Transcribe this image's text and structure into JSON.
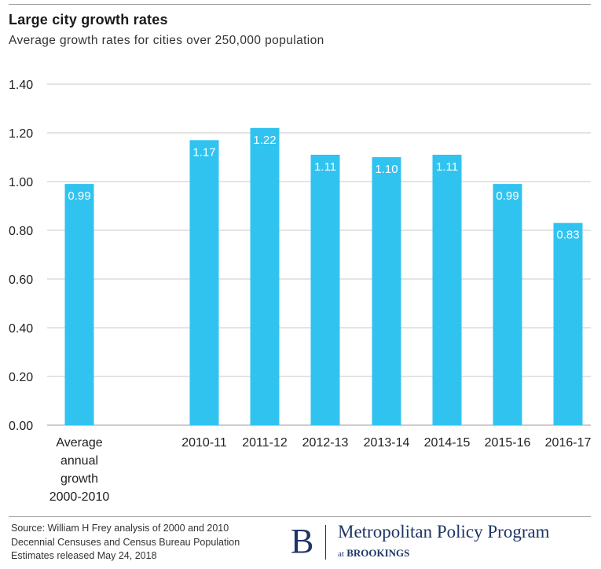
{
  "chart_data": {
    "type": "bar",
    "title": "Large city growth rates",
    "subtitle": "Average growth rates for cities over 250,000 population",
    "categories": [
      "Average annual growth 2000-2010",
      "2010-11",
      "2011-12",
      "2012-13",
      "2013-14",
      "2014-15",
      "2015-16",
      "2016-17"
    ],
    "category_lines": [
      [
        "Average",
        "annual",
        "growth",
        "2000-2010"
      ],
      [
        "2010-11"
      ],
      [
        "2011-12"
      ],
      [
        "2012-13"
      ],
      [
        "2013-14"
      ],
      [
        "2014-15"
      ],
      [
        "2015-16"
      ],
      [
        "2016-17"
      ]
    ],
    "values": [
      0.99,
      1.17,
      1.22,
      1.11,
      1.1,
      1.11,
      0.99,
      0.83
    ],
    "value_labels": [
      "0.99",
      "1.17",
      "1.22",
      "1.11",
      "1.10",
      "1.11",
      "0.99",
      "0.83"
    ],
    "ylim": [
      0,
      1.4
    ],
    "yticks": [
      0,
      0.2,
      0.4,
      0.6,
      0.8,
      1.0,
      1.2,
      1.4
    ],
    "ytick_labels": [
      "0.00",
      "0.20",
      "0.40",
      "0.60",
      "0.80",
      "1.00",
      "1.20",
      "1.40"
    ],
    "xlabel": "",
    "ylabel": "",
    "grid": true,
    "bar_color": "#31c3f0",
    "grid_color": "#c8c8c8"
  },
  "source": {
    "lines": [
      "Source: William H Frey analysis of 2000 and 2010",
      "Decennial Censuses and Census Bureau Population",
      "Estimates released May 24, 2018"
    ]
  },
  "logo": {
    "mark": "B",
    "name": "Metropolitan Policy Program",
    "sub_prefix": "at",
    "sub_org": "BROOKINGS"
  },
  "colors": {
    "brand": "#1f3566"
  }
}
